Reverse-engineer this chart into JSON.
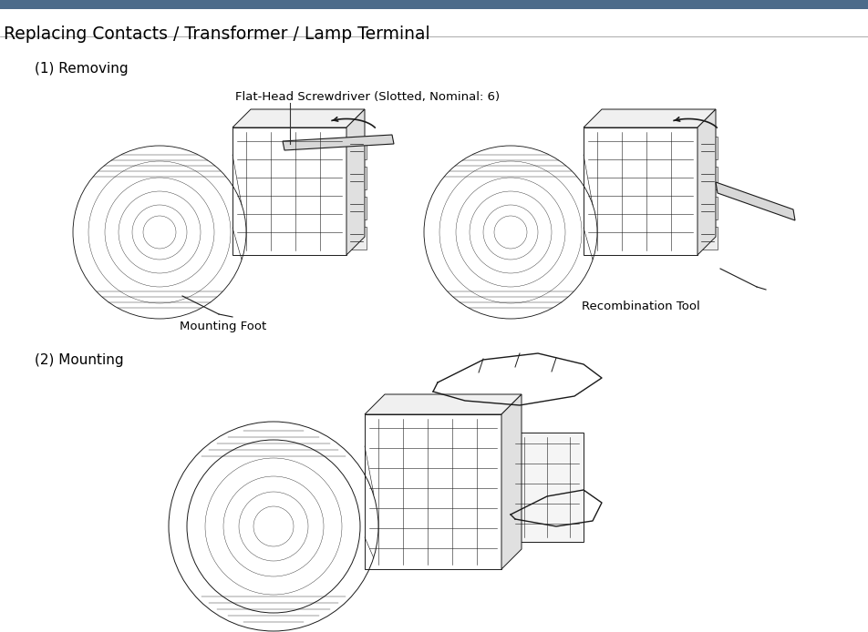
{
  "title_bar_color": "#4d6b8a",
  "title_text": "Replacing Contacts / Transformer / Lamp Terminal",
  "title_fontsize": 13.5,
  "title_color": "#000000",
  "section1_label": "(1) Removing",
  "section2_label": "(2) Mounting",
  "screwdriver_label": "Flat-Head Screwdriver (Slotted, Nominal: 6)",
  "mounting_foot_label": "Mounting Foot",
  "recomb_label": "Recombination Tool",
  "bg_color": "#ffffff",
  "label_fontsize": 9.5,
  "section_fontsize": 11
}
